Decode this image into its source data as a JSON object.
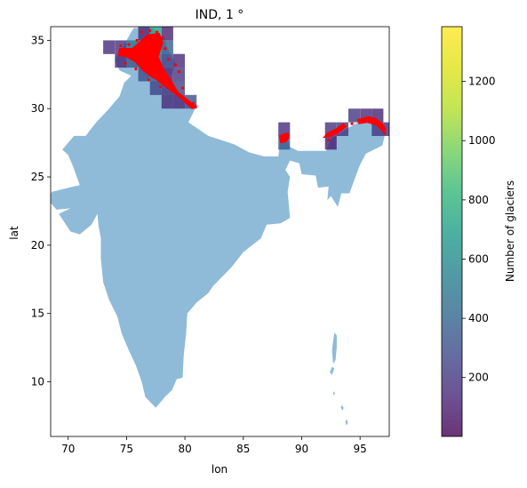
{
  "chart_data": {
    "type": "heatmap",
    "title": "IND, 1 °",
    "xlabel": "lon",
    "ylabel": "lat",
    "xlim": [
      68.5,
      97.5
    ],
    "ylim": [
      6,
      36
    ],
    "xticks": [
      70,
      75,
      80,
      85,
      90,
      95
    ],
    "yticks": [
      10,
      15,
      20,
      25,
      30,
      35
    ],
    "grid": false,
    "land_color": "#8fbbd9",
    "glacier_color": "#ff0000",
    "colorbar": {
      "label": "Number of glaciers",
      "min": 1,
      "max": 1385,
      "ticks": [
        200,
        400,
        600,
        800,
        1000,
        1200
      ],
      "colormap": "viridis",
      "alpha": 0.8
    },
    "cells": [
      {
        "lon": 73,
        "lat": 34,
        "count": 150
      },
      {
        "lon": 74,
        "lat": 34,
        "count": 180
      },
      {
        "lon": 74,
        "lat": 33,
        "count": 140
      },
      {
        "lon": 75,
        "lat": 34,
        "count": 500
      },
      {
        "lon": 75,
        "lat": 33,
        "count": 350
      },
      {
        "lon": 76,
        "lat": 35,
        "count": 150
      },
      {
        "lon": 76,
        "lat": 34,
        "count": 600
      },
      {
        "lon": 76,
        "lat": 33,
        "count": 450
      },
      {
        "lon": 76,
        "lat": 32,
        "count": 300
      },
      {
        "lon": 77,
        "lat": 35,
        "count": 700
      },
      {
        "lon": 77,
        "lat": 34,
        "count": 650
      },
      {
        "lon": 77,
        "lat": 33,
        "count": 500
      },
      {
        "lon": 77,
        "lat": 32,
        "count": 400
      },
      {
        "lon": 77,
        "lat": 31,
        "count": 250
      },
      {
        "lon": 78,
        "lat": 35,
        "count": 120
      },
      {
        "lon": 78,
        "lat": 34,
        "count": 380
      },
      {
        "lon": 78,
        "lat": 33,
        "count": 250
      },
      {
        "lon": 78,
        "lat": 32,
        "count": 150
      },
      {
        "lon": 78,
        "lat": 31,
        "count": 200
      },
      {
        "lon": 78,
        "lat": 30,
        "count": 150
      },
      {
        "lon": 79,
        "lat": 33,
        "count": 150
      },
      {
        "lon": 79,
        "lat": 32,
        "count": 200
      },
      {
        "lon": 79,
        "lat": 31,
        "count": 250
      },
      {
        "lon": 79,
        "lat": 30,
        "count": 150
      },
      {
        "lon": 80,
        "lat": 30,
        "count": 300
      },
      {
        "lon": 88,
        "lat": 28,
        "count": 150
      },
      {
        "lon": 88,
        "lat": 27,
        "count": 350
      },
      {
        "lon": 92,
        "lat": 28,
        "count": 180
      },
      {
        "lon": 93,
        "lat": 28,
        "count": 200
      },
      {
        "lon": 92,
        "lat": 27,
        "count": 100
      },
      {
        "lon": 94,
        "lat": 29,
        "count": 200
      },
      {
        "lon": 95,
        "lat": 29,
        "count": 150
      },
      {
        "lon": 96,
        "lat": 29,
        "count": 120
      },
      {
        "lon": 96,
        "lat": 28,
        "count": 200
      },
      {
        "lon": 97,
        "lat": 28,
        "count": 150
      }
    ]
  }
}
